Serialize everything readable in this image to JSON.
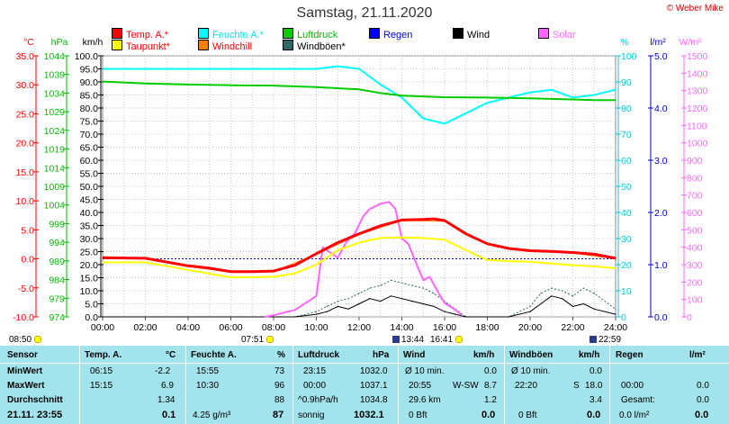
{
  "header": {
    "title": "Samstag, 21.11.2020",
    "copyright": "© Weber Mike"
  },
  "legend": [
    {
      "label": "Temp. A.*",
      "color": "#ff0000",
      "text_color": "#ff0000"
    },
    {
      "label": "Feuchte A.*",
      "color": "#00ffff",
      "text_color": "#00e5ee"
    },
    {
      "label": "Luftdruck",
      "color": "#00cc00",
      "text_color": "#00bb00"
    },
    {
      "label": "Regen",
      "color": "#0000ff",
      "text_color": "#0000ff"
    },
    {
      "label": "Wind",
      "color": "#000000",
      "text_color": "#000000"
    },
    {
      "label": "Solar",
      "color": "#ff66ff",
      "text_color": "#ff66ff"
    },
    {
      "label": "Taupunkt*",
      "color": "#ffff00",
      "text_color": "#ff0000"
    },
    {
      "label": "Windchill",
      "color": "#ff8000",
      "text_color": "#ff0000"
    },
    {
      "label": "Windböen*",
      "color": "#336666",
      "text_color": "#000000"
    }
  ],
  "axis_units": {
    "temp": "°C",
    "pressure": "hPa",
    "wind": "km/h",
    "humidity": "%",
    "rain": "l/m²",
    "solar": "W/m²"
  },
  "time_marks": {
    "left": "08:50",
    "sunrise": "07:51",
    "start_label": "13:44",
    "mid_label": "16:41",
    "right": "22:59"
  },
  "chart_data": {
    "type": "line",
    "title": "Samstag, 21.11.2020",
    "x_unit": "hours",
    "xlim": [
      0,
      24
    ],
    "x_ticks": [
      "00:00",
      "02:00",
      "04:00",
      "06:00",
      "08:00",
      "10:00",
      "12:00",
      "14:00",
      "16:00",
      "18:00",
      "20:00",
      "22:00",
      "24:00"
    ],
    "axes": {
      "temp": {
        "label": "°C",
        "ylim": [
          -10,
          35
        ],
        "ticks": [
          "35.0",
          "30.0",
          "25.0",
          "20.0",
          "15.0",
          "10.0",
          "5.0",
          "0.0",
          "-5.0",
          "-10.0"
        ]
      },
      "pressure": {
        "label": "hPa",
        "ylim": [
          974,
          1044
        ],
        "ticks": [
          "1044",
          "1039",
          "1034",
          "1029",
          "1024",
          "1019",
          "1014",
          "1009",
          "1004",
          "999",
          "994",
          "989",
          "984",
          "979",
          "974"
        ]
      },
      "wind": {
        "label": "km/h",
        "ylim": [
          0,
          100
        ],
        "ticks": [
          "100.0",
          "95.0",
          "90.0",
          "85.0",
          "80.0",
          "75.0",
          "70.0",
          "65.0",
          "60.0",
          "55.0",
          "50.0",
          "45.0",
          "40.0",
          "35.0",
          "30.0",
          "25.0",
          "20.0",
          "15.0",
          "10.0",
          "5.0",
          "0.0"
        ]
      },
      "humidity": {
        "label": "%",
        "ylim": [
          0,
          100
        ],
        "ticks": [
          "100",
          "90",
          "80",
          "70",
          "60",
          "50",
          "40",
          "30",
          "20",
          "10",
          "0"
        ]
      },
      "rain": {
        "label": "l/m²",
        "ylim": [
          0,
          5
        ],
        "ticks": [
          "5.0",
          "4.0",
          "3.0",
          "2.0",
          "1.0",
          "0.0"
        ]
      },
      "solar": {
        "label": "W/m²",
        "ylim": [
          0,
          1500
        ],
        "ticks": [
          "1500",
          "1400",
          "1300",
          "1200",
          "1100",
          "1000",
          "900",
          "800",
          "700",
          "600",
          "500",
          "400",
          "300",
          "200",
          "100",
          "0"
        ]
      }
    },
    "series": [
      {
        "name": "Temp. A.*",
        "axis": "temp",
        "color": "#ff0000",
        "width": 3,
        "x": [
          0,
          2,
          4,
          5,
          6,
          7,
          8,
          9,
          10,
          11,
          12,
          13,
          14,
          15,
          15.5,
          16,
          17,
          18,
          19,
          20,
          21,
          22,
          23,
          24
        ],
        "y": [
          0.2,
          0.1,
          -1.2,
          -1.6,
          -2.2,
          -2.2,
          -2.1,
          -1.1,
          0.9,
          2.8,
          4.3,
          5.7,
          6.7,
          6.8,
          6.9,
          6.6,
          4.3,
          2.6,
          1.8,
          1.4,
          1.3,
          1.1,
          0.8,
          0.1
        ]
      },
      {
        "name": "Taupunkt*",
        "axis": "temp",
        "color": "#ffff00",
        "width": 2,
        "x": [
          0,
          2,
          4,
          6,
          8,
          9,
          10,
          11,
          12,
          13,
          14,
          15,
          16,
          17,
          18,
          19,
          20,
          21,
          22,
          23,
          24
        ],
        "y": [
          -0.6,
          -0.6,
          -1.9,
          -3.2,
          -3.1,
          -2.5,
          -1.0,
          1.5,
          2.8,
          3.6,
          3.7,
          3.6,
          3.3,
          1.5,
          -0.2,
          -0.4,
          -0.5,
          -0.8,
          -1.1,
          -1.3,
          -1.6
        ]
      },
      {
        "name": "Feuchte A.*",
        "axis": "humidity",
        "color": "#00ffff",
        "width": 2,
        "x": [
          0,
          2,
          4,
          6,
          8,
          10,
          11,
          12,
          13,
          14,
          15,
          16,
          17,
          18,
          19,
          20,
          21,
          22,
          23,
          24
        ],
        "y": [
          95,
          95,
          95,
          95,
          95,
          95,
          96,
          95,
          89,
          84,
          76,
          74,
          78,
          82,
          84,
          86,
          87,
          84,
          85,
          87
        ]
      },
      {
        "name": "Luftdruck",
        "axis": "pressure",
        "color": "#00cc00",
        "width": 2,
        "x": [
          0,
          2,
          4,
          6,
          8,
          10,
          12,
          13,
          14,
          16,
          18,
          20,
          22,
          23,
          24
        ],
        "y": [
          1037.1,
          1036.6,
          1036.3,
          1036.1,
          1036.0,
          1035.6,
          1035.0,
          1034.0,
          1033.3,
          1032.9,
          1032.8,
          1032.6,
          1032.3,
          1032.1,
          1032.1
        ]
      },
      {
        "name": "Solar",
        "axis": "solar",
        "color": "#ff66ff",
        "width": 2,
        "x": [
          7.6,
          8,
          9,
          10,
          10.3,
          11,
          11.4,
          11.8,
          12.2,
          12.5,
          13,
          13.4,
          13.7,
          14,
          14.3,
          14.7,
          15,
          15.3,
          15.7,
          16,
          16.5,
          16.8
        ],
        "y": [
          0,
          10,
          40,
          120,
          400,
          340,
          430,
          480,
          580,
          620,
          650,
          660,
          620,
          450,
          420,
          300,
          210,
          230,
          140,
          80,
          40,
          10
        ]
      },
      {
        "name": "Wind",
        "axis": "wind",
        "color": "#000000",
        "width": 1,
        "x": [
          0,
          8,
          9,
          10,
          10.5,
          11,
          11.5,
          12,
          12.5,
          13,
          13.5,
          14,
          14.5,
          15,
          15.5,
          16,
          16.5,
          17,
          18,
          19,
          20,
          20.5,
          21,
          21.5,
          22,
          22.5,
          23,
          24
        ],
        "y": [
          0,
          0,
          0,
          1,
          2,
          4,
          3,
          5,
          7,
          6,
          8,
          7,
          6,
          5,
          4,
          2,
          1,
          0,
          0,
          0,
          2,
          5,
          8,
          7,
          4,
          5,
          3,
          1
        ]
      },
      {
        "name": "Windböen*",
        "axis": "wind",
        "color": "#336666",
        "width": 1,
        "x": [
          0,
          8,
          9,
          10,
          10.5,
          11,
          11.5,
          12,
          12.5,
          13,
          13.5,
          14,
          14.5,
          15,
          15.5,
          16,
          16.5,
          17,
          18,
          19,
          20,
          20.5,
          21,
          21.5,
          22,
          22.5,
          23,
          24
        ],
        "y": [
          0,
          0,
          0,
          2,
          4,
          6,
          7,
          9,
          11,
          12,
          14,
          13,
          12,
          11,
          9,
          6,
          3,
          0,
          0,
          0,
          4,
          9,
          11,
          10,
          8,
          11,
          9,
          3
        ]
      },
      {
        "name": "Windchill",
        "axis": "temp",
        "color": "#ff8000",
        "width": 1,
        "x": [
          0,
          2,
          4,
          6,
          8,
          10,
          12,
          14,
          16,
          18,
          20,
          22,
          24
        ],
        "y": [
          0.2,
          0.1,
          -1.3,
          -2.3,
          -2.2,
          0.8,
          4.2,
          6.6,
          6.5,
          2.5,
          1.3,
          1.0,
          0.0
        ]
      }
    ],
    "zero_line": {
      "axis": "temp",
      "value": 0,
      "color": "#0000cc"
    }
  },
  "stats": {
    "headers": [
      "Sensor",
      "Temp. A.",
      "°C",
      "Feuchte A.",
      "%",
      "Luftdruck",
      "hPa",
      "Wind",
      "km/h",
      "Windböen",
      "km/h",
      "Regen",
      "l/m²"
    ],
    "rows": [
      {
        "label": "MinWert",
        "temp_time": "06:15",
        "temp_val": "-2.2",
        "hum_time": "15:55",
        "hum_val": "73",
        "pres_time": "23:15",
        "pres_val": "1032.0",
        "wind_desc": "Ø 10 min.",
        "wind_val": "0.0",
        "gust_desc": "Ø 10 min.",
        "gust_val": "0.0",
        "rain_desc": "",
        "rain_val": ""
      },
      {
        "label": "MaxWert",
        "temp_time": "15:15",
        "temp_val": "6.9",
        "hum_time": "10:30",
        "hum_val": "96",
        "pres_time": "00:00",
        "pres_val": "1037.1",
        "wind_desc": "20:55",
        "wind_dir": "W-SW",
        "wind_val": "8.7",
        "gust_desc": "22:20",
        "gust_dir": "S",
        "gust_val": "18.0",
        "rain_desc": "00:00",
        "rain_val": "0.0"
      },
      {
        "label": "Durchschnitt",
        "temp_time": "",
        "temp_val": "1.34",
        "hum_time": "",
        "hum_val": "88",
        "pres_time": "^0.9hPa/h",
        "pres_val": "1034.8",
        "wind_desc": "29.6 km",
        "wind_val": "1.2",
        "gust_desc": "",
        "gust_val": "3.4",
        "rain_desc": "Gesamt:",
        "rain_val": "0.0"
      },
      {
        "label": "21.11. 23:55",
        "temp_time": "",
        "temp_val": "0.1",
        "hum_time": "4.25 g/m³",
        "hum_val": "87",
        "pres_time": "sonnig",
        "pres_val": "1032.1",
        "wind_desc": "0 Bft",
        "wind_val": "0.0",
        "gust_desc": "0 Bft",
        "gust_val": "0.0",
        "rain_desc": "0.0 l/m²",
        "rain_val": "0.0"
      }
    ]
  }
}
